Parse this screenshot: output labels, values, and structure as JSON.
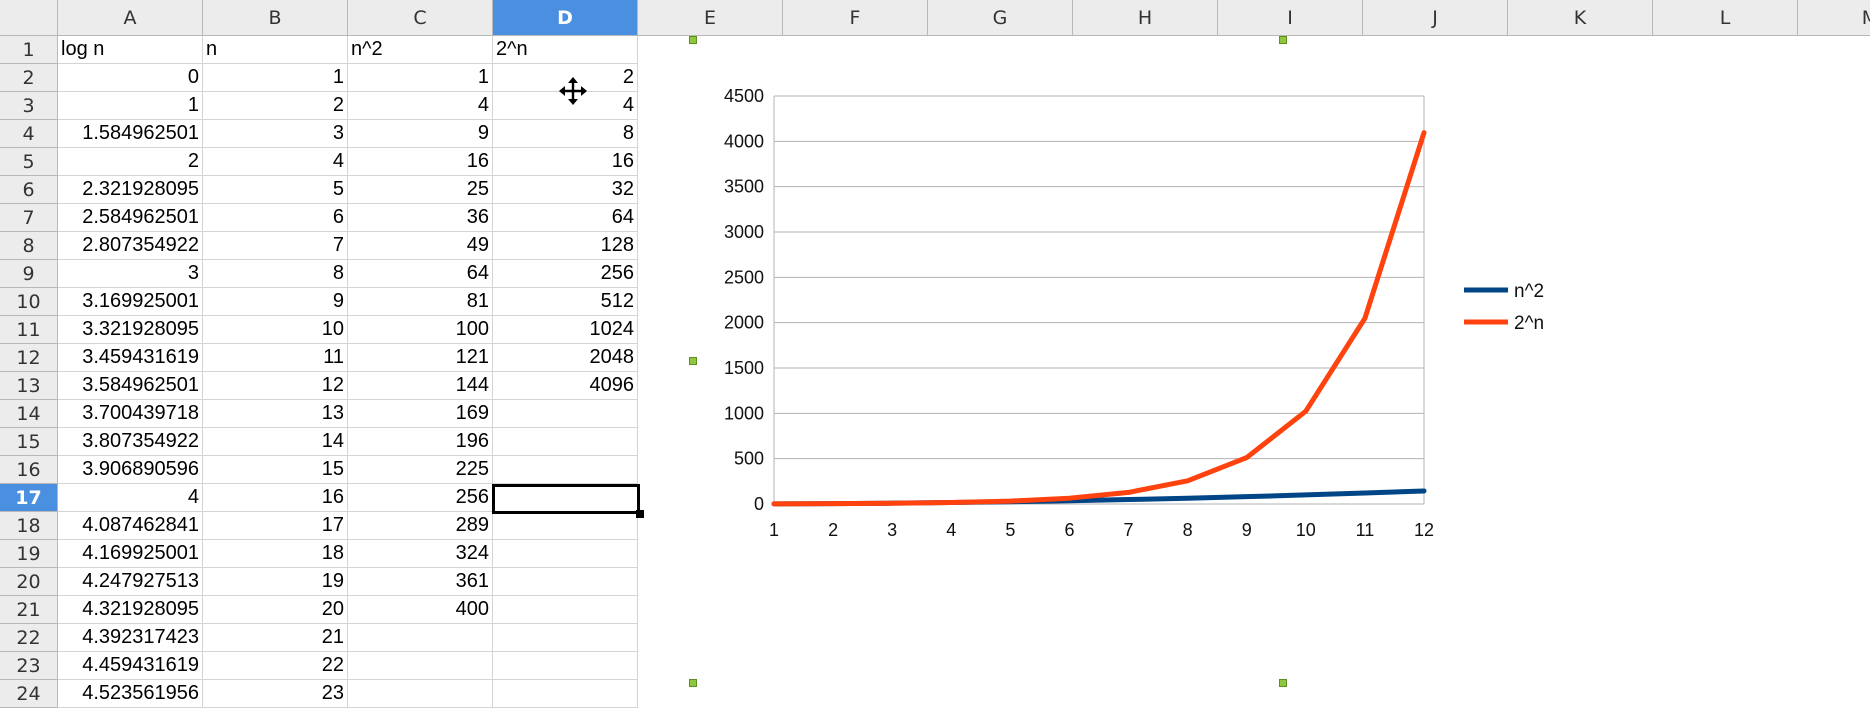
{
  "spreadsheet": {
    "columns": [
      "A",
      "B",
      "C",
      "D",
      "E",
      "F",
      "G",
      "H",
      "I",
      "J",
      "K",
      "L",
      "M"
    ],
    "active_column": "D",
    "active_row": "17",
    "rows": [
      {
        "num": "1",
        "a": "log n",
        "b": "n",
        "c": "n^2",
        "d": "2^n"
      },
      {
        "num": "2",
        "a": "0",
        "b": "1",
        "c": "1",
        "d": "2"
      },
      {
        "num": "3",
        "a": "1",
        "b": "2",
        "c": "4",
        "d": "4"
      },
      {
        "num": "4",
        "a": "1.584962501",
        "b": "3",
        "c": "9",
        "d": "8"
      },
      {
        "num": "5",
        "a": "2",
        "b": "4",
        "c": "16",
        "d": "16"
      },
      {
        "num": "6",
        "a": "2.321928095",
        "b": "5",
        "c": "25",
        "d": "32"
      },
      {
        "num": "7",
        "a": "2.584962501",
        "b": "6",
        "c": "36",
        "d": "64"
      },
      {
        "num": "8",
        "a": "2.807354922",
        "b": "7",
        "c": "49",
        "d": "128"
      },
      {
        "num": "9",
        "a": "3",
        "b": "8",
        "c": "64",
        "d": "256"
      },
      {
        "num": "10",
        "a": "3.169925001",
        "b": "9",
        "c": "81",
        "d": "512"
      },
      {
        "num": "11",
        "a": "3.321928095",
        "b": "10",
        "c": "100",
        "d": "1024"
      },
      {
        "num": "12",
        "a": "3.459431619",
        "b": "11",
        "c": "121",
        "d": "2048"
      },
      {
        "num": "13",
        "a": "3.584962501",
        "b": "12",
        "c": "144",
        "d": "4096"
      },
      {
        "num": "14",
        "a": "3.700439718",
        "b": "13",
        "c": "169",
        "d": ""
      },
      {
        "num": "15",
        "a": "3.807354922",
        "b": "14",
        "c": "196",
        "d": ""
      },
      {
        "num": "16",
        "a": "3.906890596",
        "b": "15",
        "c": "225",
        "d": ""
      },
      {
        "num": "17",
        "a": "4",
        "b": "16",
        "c": "256",
        "d": ""
      },
      {
        "num": "18",
        "a": "4.087462841",
        "b": "17",
        "c": "289",
        "d": ""
      },
      {
        "num": "19",
        "a": "4.169925001",
        "b": "18",
        "c": "324",
        "d": ""
      },
      {
        "num": "20",
        "a": "4.247927513",
        "b": "19",
        "c": "361",
        "d": ""
      },
      {
        "num": "21",
        "a": "4.321928095",
        "b": "20",
        "c": "400",
        "d": ""
      },
      {
        "num": "22",
        "a": "4.392317423",
        "b": "21",
        "c": "",
        "d": ""
      },
      {
        "num": "23",
        "a": "4.459431619",
        "b": "22",
        "c": "",
        "d": ""
      },
      {
        "num": "24",
        "a": "4.523561956",
        "b": "23",
        "c": "",
        "d": ""
      }
    ],
    "icons": {
      "cursor": "move-cursor-icon"
    }
  },
  "chart_data": {
    "type": "line",
    "title": "",
    "xlabel": "",
    "ylabel": "",
    "categories": [
      "1",
      "2",
      "3",
      "4",
      "5",
      "6",
      "7",
      "8",
      "9",
      "10",
      "11",
      "12"
    ],
    "series": [
      {
        "name": "n^2",
        "color": "#004586",
        "values": [
          1,
          4,
          9,
          16,
          25,
          36,
          49,
          64,
          81,
          100,
          121,
          144
        ]
      },
      {
        "name": "2^n",
        "color": "#ff420e",
        "values": [
          2,
          4,
          8,
          16,
          32,
          64,
          128,
          256,
          512,
          1024,
          2048,
          4096
        ]
      }
    ],
    "ylim": [
      0,
      4500
    ],
    "yticks": [
      0,
      500,
      1000,
      1500,
      2000,
      2500,
      3000,
      3500,
      4000,
      4500
    ],
    "grid": "horizontal",
    "legend_position": "right"
  }
}
